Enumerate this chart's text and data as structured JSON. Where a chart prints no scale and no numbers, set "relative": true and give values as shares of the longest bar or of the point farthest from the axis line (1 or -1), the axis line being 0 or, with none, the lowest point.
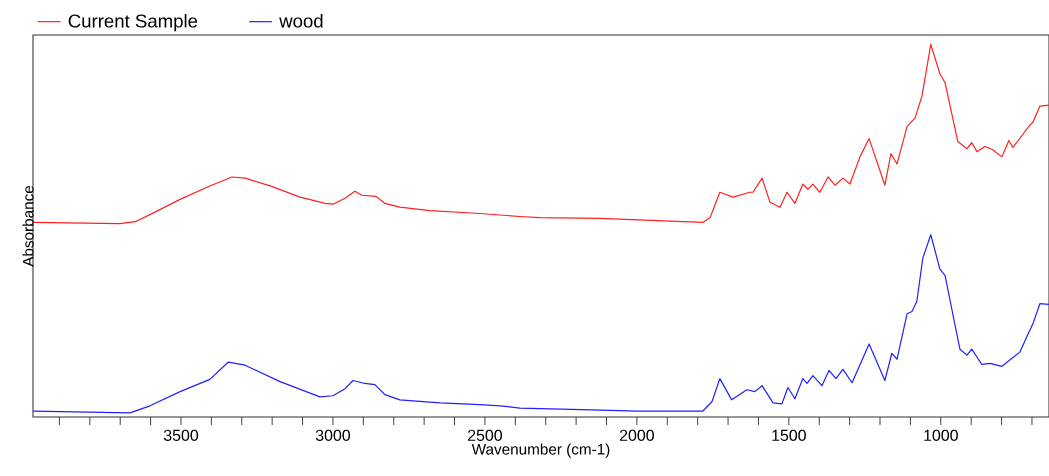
{
  "chart_data": {
    "type": "line",
    "relative": true,
    "xlabel": "Wavenumber (cm-1)",
    "ylabel": "Absorbance",
    "xlim": [
      3987,
      644
    ],
    "xticks": [
      {
        "value": 3900,
        "label": null
      },
      {
        "value": 3800,
        "label": null
      },
      {
        "value": 3700,
        "label": null
      },
      {
        "value": 3600,
        "label": null
      },
      3500,
      {
        "value": 3400,
        "label": null
      },
      {
        "value": 3300,
        "label": null
      },
      {
        "value": 3200,
        "label": null
      },
      {
        "value": 3100,
        "label": null
      },
      3000,
      {
        "value": 2900,
        "label": null
      },
      {
        "value": 2800,
        "label": null
      },
      {
        "value": 2700,
        "label": null
      },
      {
        "value": 2600,
        "label": null
      },
      2500,
      {
        "value": 2400,
        "label": null
      },
      {
        "value": 2300,
        "label": null
      },
      {
        "value": 2200,
        "label": null
      },
      {
        "value": 2100,
        "label": null
      },
      2000,
      {
        "value": 1900,
        "label": null
      },
      {
        "value": 1800,
        "label": null
      },
      {
        "value": 1700,
        "label": null
      },
      {
        "value": 1600,
        "label": null
      },
      1500,
      {
        "value": 1400,
        "label": null
      },
      {
        "value": 1300,
        "label": null
      },
      {
        "value": 1200,
        "label": null
      },
      {
        "value": 1100,
        "label": null
      },
      1000,
      {
        "value": 900,
        "label": null
      },
      {
        "value": 800,
        "label": null
      },
      {
        "value": 700,
        "label": null
      }
    ],
    "legend": "top",
    "marker": "none",
    "line_style": "solid",
    "series": [
      {
        "name": "Current Sample",
        "color": "#ff2020",
        "x": [
          3987,
          3701,
          3651,
          3602,
          3503,
          3405,
          3332,
          3289,
          3207,
          3108,
          3026,
          3000,
          2960,
          2928,
          2905,
          2858,
          2829,
          2780,
          2681,
          2516,
          2385,
          2319,
          2122,
          1783,
          1759,
          1727,
          1684,
          1628,
          1618,
          1588,
          1562,
          1529,
          1506,
          1480,
          1454,
          1437,
          1421,
          1398,
          1371,
          1348,
          1322,
          1299,
          1266,
          1236,
          1184,
          1164,
          1144,
          1111,
          1085,
          1062,
          1033,
          1003,
          986,
          944,
          914,
          898,
          881,
          855,
          829,
          799,
          776,
          763,
          707,
          697,
          674,
          644
        ],
        "values": [
          0.522,
          0.519,
          0.524,
          0.543,
          0.584,
          0.62,
          0.644,
          0.641,
          0.62,
          0.59,
          0.573,
          0.571,
          0.587,
          0.606,
          0.595,
          0.592,
          0.573,
          0.563,
          0.554,
          0.546,
          0.538,
          0.535,
          0.533,
          0.522,
          0.535,
          0.603,
          0.59,
          0.603,
          0.603,
          0.641,
          0.576,
          0.563,
          0.603,
          0.573,
          0.625,
          0.611,
          0.625,
          0.603,
          0.644,
          0.622,
          0.641,
          0.625,
          0.698,
          0.747,
          0.622,
          0.707,
          0.679,
          0.78,
          0.802,
          0.861,
          1.0,
          0.921,
          0.897,
          0.739,
          0.72,
          0.736,
          0.712,
          0.726,
          0.717,
          0.698,
          0.742,
          0.723,
          0.783,
          0.791,
          0.834,
          0.837
        ]
      },
      {
        "name": "wood",
        "color": "#2020ff",
        "x": [
          3987,
          3668,
          3602,
          3503,
          3405,
          3345,
          3289,
          3174,
          3043,
          3000,
          2960,
          2934,
          2895,
          2862,
          2829,
          2780,
          2648,
          2516,
          2450,
          2385,
          2148,
          2000,
          1783,
          1753,
          1727,
          1688,
          1638,
          1612,
          1588,
          1552,
          1523,
          1503,
          1480,
          1454,
          1440,
          1421,
          1391,
          1368,
          1345,
          1322,
          1292,
          1236,
          1184,
          1161,
          1144,
          1111,
          1095,
          1079,
          1059,
          1033,
          1003,
          986,
          954,
          937,
          914,
          898,
          865,
          838,
          799,
          740,
          713,
          697,
          674,
          644
        ],
        "values": [
          0.016,
          0.011,
          0.03,
          0.068,
          0.101,
          0.147,
          0.139,
          0.095,
          0.054,
          0.057,
          0.076,
          0.098,
          0.09,
          0.087,
          0.06,
          0.046,
          0.038,
          0.033,
          0.03,
          0.024,
          0.019,
          0.016,
          0.016,
          0.041,
          0.103,
          0.046,
          0.073,
          0.068,
          0.084,
          0.038,
          0.035,
          0.079,
          0.049,
          0.103,
          0.09,
          0.111,
          0.084,
          0.125,
          0.103,
          0.128,
          0.092,
          0.196,
          0.098,
          0.171,
          0.155,
          0.277,
          0.283,
          0.31,
          0.427,
          0.489,
          0.397,
          0.38,
          0.25,
          0.182,
          0.166,
          0.182,
          0.141,
          0.144,
          0.136,
          0.174,
          0.223,
          0.25,
          0.304,
          0.302
        ]
      }
    ]
  }
}
